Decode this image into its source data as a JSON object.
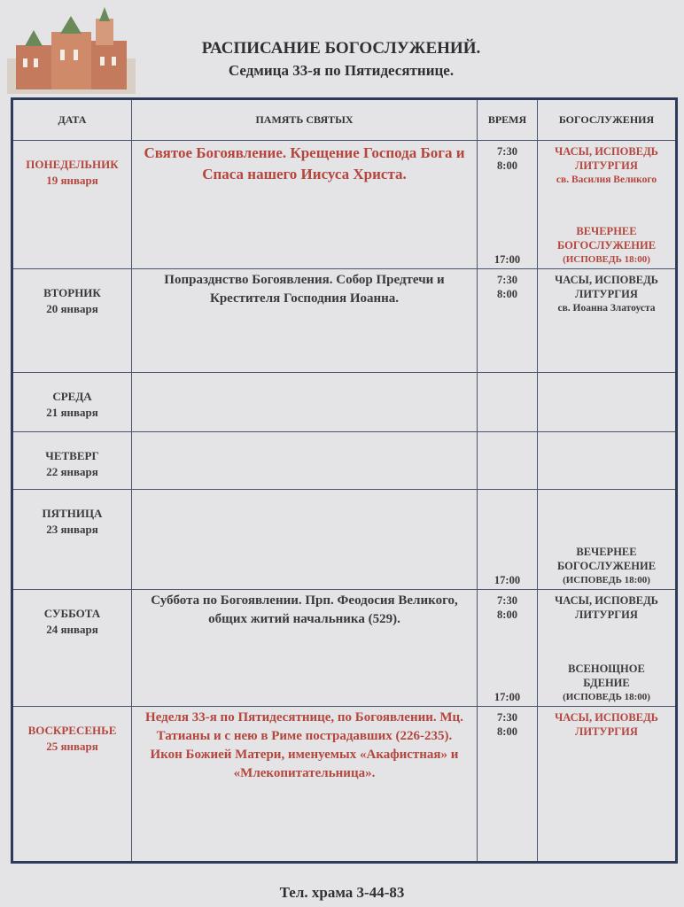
{
  "header": {
    "title": "РАСПИСАНИЕ БОГОСЛУЖЕНИЙ.",
    "subtitle": "Седмица 33-я по Пятидесятнице."
  },
  "colors": {
    "red": "#b4463d",
    "text": "#3a3a3a",
    "border": "#2d3a5a",
    "paper": "#e4e4e6"
  },
  "table": {
    "columns": [
      "ДАТА",
      "ПАМЯТЬ СВЯТЫХ",
      "ВРЕМЯ",
      "БОГОСЛУЖЕНИЯ"
    ],
    "rows": [
      {
        "day": "ПОНЕДЕЛЬНИК",
        "date": "19 января",
        "red": true,
        "big": true,
        "memory": "Святое Богоявление. Крещение Господа Бога и Спаса нашего Иисуса Христа.",
        "times_top": [
          "7:30",
          "8:00"
        ],
        "services_top": [
          "ЧАСЫ, ИСПОВЕДЬ",
          "ЛИТУРГИЯ"
        ],
        "services_sub": "св. Василия Великого",
        "time_bottom": "17:00",
        "services_bottom": [
          "ВЕЧЕРНЕЕ",
          "БОГОСЛУЖЕНИЕ"
        ],
        "note_bottom": "(ИСПОВЕДЬ 18:00)"
      },
      {
        "day": "ВТОРНИК",
        "date": "20 января",
        "red": false,
        "memory": "Попразднство Богоявления. Собор Предтечи и Крестителя Господния Иоанна.",
        "times_top": [
          "7:30",
          "8:00"
        ],
        "services_top": [
          "ЧАСЫ, ИСПОВЕДЬ",
          "ЛИТУРГИЯ"
        ],
        "services_sub": "св. Иоанна Златоуста"
      },
      {
        "day": "СРЕДА",
        "date": "21 января",
        "red": false
      },
      {
        "day": "ЧЕТВЕРГ",
        "date": "22 января",
        "red": false
      },
      {
        "day": "ПЯТНИЦА",
        "date": "23 января",
        "red": false,
        "time_bottom": "17:00",
        "services_bottom": [
          "ВЕЧЕРНЕЕ",
          "БОГОСЛУЖЕНИЕ"
        ],
        "note_bottom": "(ИСПОВЕДЬ 18:00)"
      },
      {
        "day": "СУББОТА",
        "date": "24 января",
        "red": false,
        "memory": "Суббота по Богоявлении. Прп. Феодосия Великого, общих житий начальника (529).",
        "times_top": [
          "7:30",
          "8:00"
        ],
        "services_top": [
          "ЧАСЫ, ИСПОВЕДЬ",
          "ЛИТУРГИЯ"
        ],
        "time_bottom": "17:00",
        "services_bottom": [
          "ВСЕНОЩНОЕ",
          "БДЕНИЕ"
        ],
        "note_bottom": "(ИСПОВЕДЬ 18:00)"
      },
      {
        "day": "ВОСКРЕСЕНЬЕ",
        "date": "25 января",
        "red": true,
        "memory": "Неделя 33-я по Пятидесятнице, по Богоявлении. Мц. Татианы и с нею в Риме пострадавших (226-235). Икон Божией Матери, именуемых «Акафистная» и «Млекопитательница».",
        "times_top": [
          "7:30",
          "8:00"
        ],
        "services_top": [
          "ЧАСЫ, ИСПОВЕДЬ",
          "ЛИТУРГИЯ"
        ]
      }
    ]
  },
  "footer": {
    "phone": "Тел. храма 3-44-83"
  }
}
